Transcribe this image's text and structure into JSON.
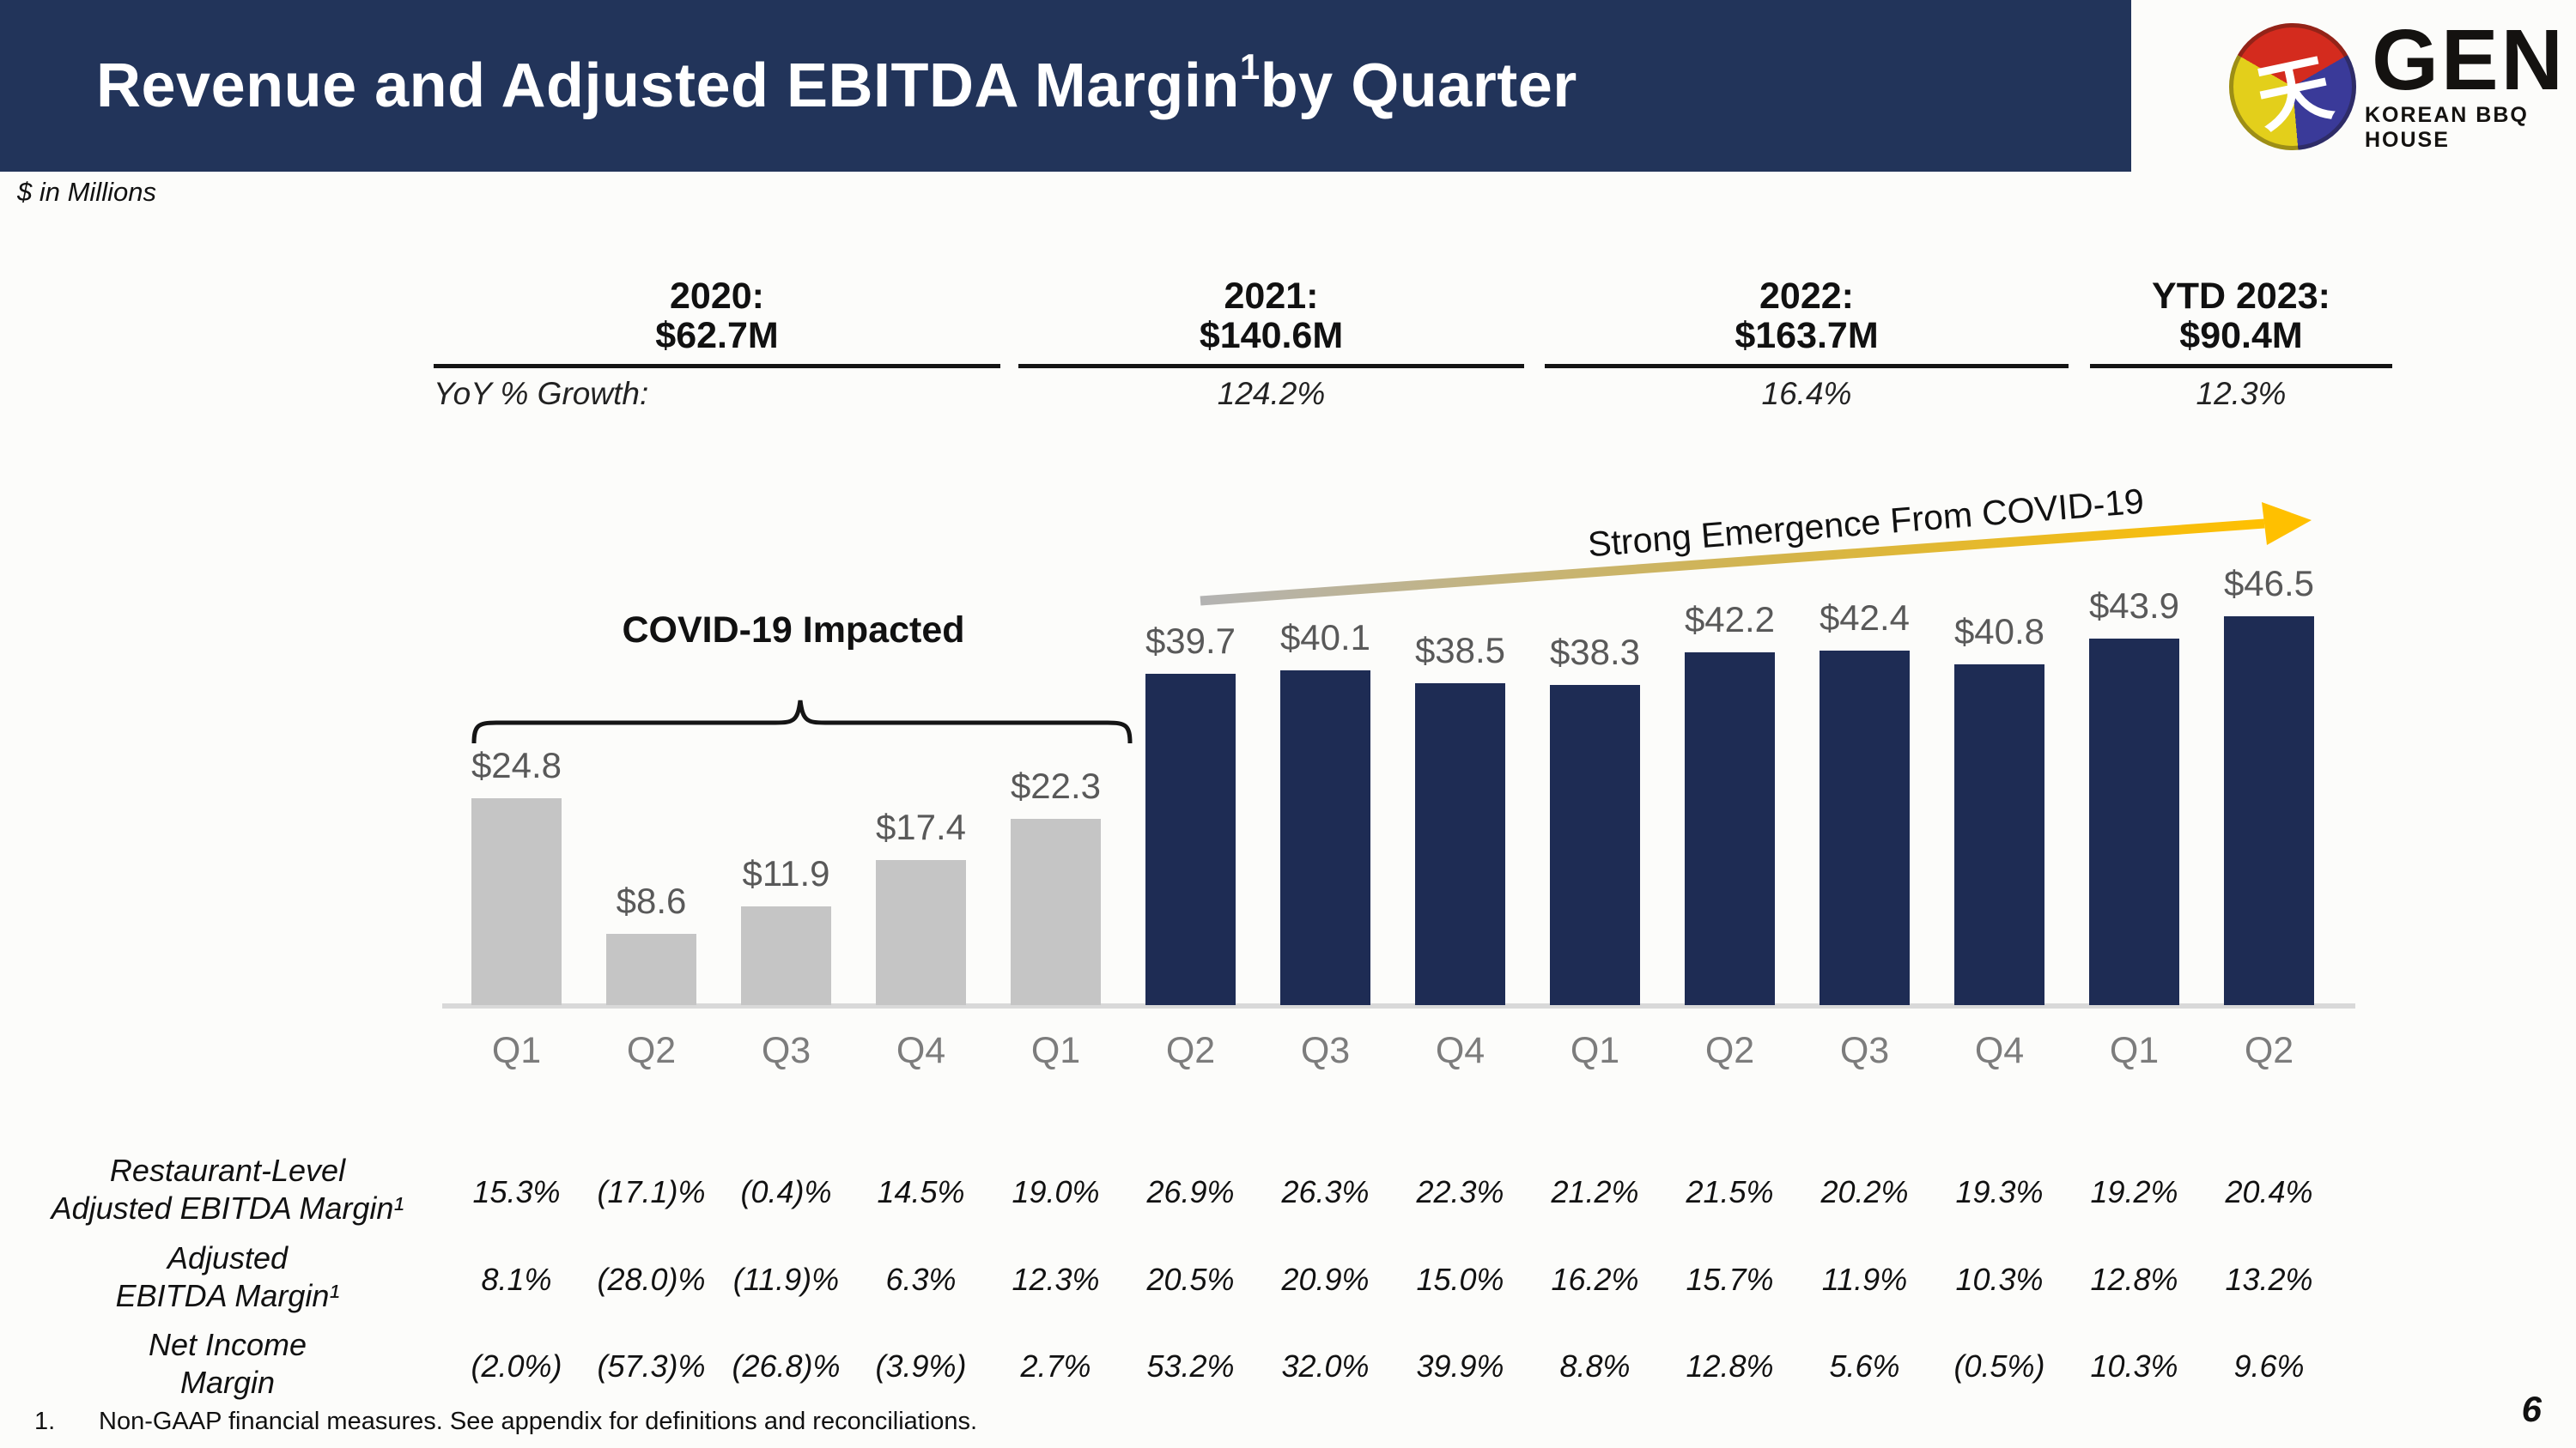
{
  "header": {
    "title_main": "Revenue and Adjusted EBITDA Margin",
    "title_sup": "1",
    "title_rest": " by Quarter"
  },
  "logo": {
    "name": "GEN",
    "tagline": "KOREAN BBQ HOUSE",
    "glyph": "天"
  },
  "subtitle": "$ in Millions",
  "yoy_label": "YoY % Growth:",
  "year_summary": [
    {
      "year": "2020:",
      "revenue": "$62.7M",
      "growth": ""
    },
    {
      "year": "2021:",
      "revenue": "$140.6M",
      "growth": "124.2%"
    },
    {
      "year": "2022:",
      "revenue": "$163.7M",
      "growth": "16.4%"
    },
    {
      "year": "YTD 2023:",
      "revenue": "$90.4M",
      "growth": "12.3%"
    }
  ],
  "annotations": {
    "covid_impacted": "COVID-19 Impacted",
    "emergence": "Strong Emergence From COVID-19"
  },
  "chart_data": {
    "type": "bar",
    "title": "Revenue and Adjusted EBITDA Margin¹ by Quarter",
    "units": "$ in Millions",
    "categories": [
      "Q1",
      "Q2",
      "Q3",
      "Q4",
      "Q1",
      "Q2",
      "Q3",
      "Q4",
      "Q1",
      "Q2",
      "Q3",
      "Q4",
      "Q1",
      "Q2"
    ],
    "values": [
      24.8,
      8.6,
      11.9,
      17.4,
      22.3,
      39.7,
      40.1,
      38.5,
      38.3,
      42.2,
      42.4,
      40.8,
      43.9,
      46.5
    ],
    "value_labels": [
      "$24.8",
      "$8.6",
      "$11.9",
      "$17.4",
      "$22.3",
      "$39.7",
      "$40.1",
      "$38.5",
      "$38.3",
      "$42.2",
      "$42.4",
      "$40.8",
      "$43.9",
      "$46.5"
    ],
    "covid_impacted_bars": 5,
    "ylim": [
      0,
      48
    ],
    "gridlines": false,
    "legend": "none"
  },
  "table": {
    "rows": [
      {
        "label_lines": [
          "Restaurant-Level",
          "Adjusted EBITDA Margin¹"
        ],
        "values": [
          "15.3%",
          "(17.1)%",
          "(0.4)%",
          "14.5%",
          "19.0%",
          "26.9%",
          "26.3%",
          "22.3%",
          "21.2%",
          "21.5%",
          "20.2%",
          "19.3%",
          "19.2%",
          "20.4%"
        ]
      },
      {
        "label_lines": [
          "Adjusted",
          "EBITDA Margin¹"
        ],
        "values": [
          "8.1%",
          "(28.0)%",
          "(11.9)%",
          "6.3%",
          "12.3%",
          "20.5%",
          "20.9%",
          "15.0%",
          "16.2%",
          "15.7%",
          "11.9%",
          "10.3%",
          "12.8%",
          "13.2%"
        ]
      },
      {
        "label_lines": [
          "Net Income",
          "Margin"
        ],
        "values": [
          "(2.0%)",
          "(57.3)%",
          "(26.8)%",
          "(3.9%)",
          "2.7%",
          "53.2%",
          "32.0%",
          "39.9%",
          "8.8%",
          "12.8%",
          "5.6%",
          "(0.5%)",
          "10.3%",
          "9.6%"
        ]
      }
    ]
  },
  "footnote": {
    "number": "1.",
    "text": "Non-GAAP financial measures. See appendix for definitions and reconciliations."
  },
  "page_number": "6",
  "colors": {
    "header_bg": "#22345A",
    "bar_navy": "#1E2C54",
    "bar_gray": "#C5C5C5",
    "arrow_yellow": "#FFC000",
    "arrow_gray": "#B3B3B3",
    "value_label_gray": "#595959",
    "axis_line": "#D9D9D9"
  }
}
